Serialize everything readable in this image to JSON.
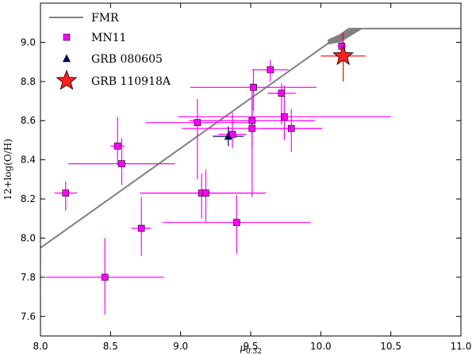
{
  "chart_data": {
    "type": "scatter",
    "xlabel": "μ0.32",
    "xlabel_main": "μ",
    "xlabel_sub": "0.32",
    "ylabel": "12+log(O/H)",
    "xlim": [
      8.0,
      11.0
    ],
    "ylim": [
      7.5,
      9.2
    ],
    "x_ticks": [
      "8.0",
      "8.5",
      "9.0",
      "9.5",
      "10.0",
      "10.5",
      "11.0"
    ],
    "y_ticks": [
      "7.6",
      "7.8",
      "8.0",
      "8.2",
      "8.4",
      "8.6",
      "8.8",
      "9.0"
    ],
    "grid": false,
    "legend_position": "top-left",
    "series": [
      {
        "name": "FMR",
        "kind": "line",
        "color": "#808080",
        "x": [
          8.0,
          10.2,
          11.0
        ],
        "y": [
          7.95,
          9.07,
          9.07
        ]
      },
      {
        "name": "MN11",
        "kind": "errorbar",
        "color": "#ff00ff",
        "points": [
          {
            "x": 8.18,
            "y": 8.23,
            "xerr": 0.08,
            "yerr_lo": 0.09,
            "yerr_hi": 0.06
          },
          {
            "x": 8.46,
            "y": 7.8,
            "xerr": 0.42,
            "yerr_lo": 0.19,
            "yerr_hi": 0.2
          },
          {
            "x": 8.55,
            "y": 8.47,
            "xerr": 0.05,
            "yerr_lo": 0.1,
            "yerr_hi": 0.15
          },
          {
            "x": 8.58,
            "y": 8.38,
            "xerr": 0.38,
            "yerr_lo": 0.11,
            "yerr_hi": 0.13
          },
          {
            "x": 8.72,
            "y": 8.05,
            "xerr": 0.07,
            "yerr_lo": 0.14,
            "yerr_hi": 0.16
          },
          {
            "x": 9.12,
            "y": 8.59,
            "xerr": 0.37,
            "yerr_lo": 0.29,
            "yerr_hi": 0.12
          },
          {
            "x": 9.15,
            "y": 8.23,
            "xerr": 0.44,
            "yerr_lo": 0.13,
            "yerr_hi": 0.1
          },
          {
            "x": 9.18,
            "y": 8.23,
            "xerr": 0.43,
            "yerr_lo": 0.15,
            "yerr_hi": 0.12
          },
          {
            "x": 9.37,
            "y": 8.53,
            "xerr": 0.1,
            "yerr_lo": 0.07,
            "yerr_hi": 0.11
          },
          {
            "x": 9.4,
            "y": 8.08,
            "xerr": 0.53,
            "yerr_lo": 0.16,
            "yerr_hi": 0.14
          },
          {
            "x": 9.51,
            "y": 8.56,
            "xerr": 0.5,
            "yerr_lo": 0.35,
            "yerr_hi": 0.23
          },
          {
            "x": 9.51,
            "y": 8.6,
            "xerr": 0.45,
            "yerr_lo": 0.13,
            "yerr_hi": 0.11
          },
          {
            "x": 9.52,
            "y": 8.77,
            "xerr": 0.45,
            "yerr_lo": 0.12,
            "yerr_hi": 0.09
          },
          {
            "x": 9.64,
            "y": 8.86,
            "xerr": 0.13,
            "yerr_lo": 0.06,
            "yerr_hi": 0.05
          },
          {
            "x": 9.72,
            "y": 8.74,
            "xerr": 0.1,
            "yerr_lo": 0.16,
            "yerr_hi": 0.05
          },
          {
            "x": 9.74,
            "y": 8.62,
            "xerr": 0.76,
            "yerr_lo": 0.12,
            "yerr_hi": 0.16
          },
          {
            "x": 9.79,
            "y": 8.56,
            "xerr": 0.22,
            "yerr_lo": 0.12,
            "yerr_hi": 0.1
          },
          {
            "x": 10.15,
            "y": 8.98,
            "xerr": 0.03,
            "yerr_lo": 0.05,
            "yerr_hi": 0.06
          }
        ]
      },
      {
        "name": "GRB 080605",
        "kind": "errorbar",
        "color": "#000066",
        "points": [
          {
            "x": 9.34,
            "y": 8.52,
            "xerr": 0.11,
            "yerr_lo": 0.05,
            "yerr_hi": 0.05
          }
        ]
      },
      {
        "name": "GRB 110918A",
        "kind": "errorbar",
        "color": "#ff0000",
        "marker_color": "#ff2020",
        "points": [
          {
            "x": 10.16,
            "y": 8.93,
            "xerr": 0.16,
            "yerr_lo": 0.13,
            "yerr_hi": 0.12
          }
        ]
      }
    ]
  }
}
